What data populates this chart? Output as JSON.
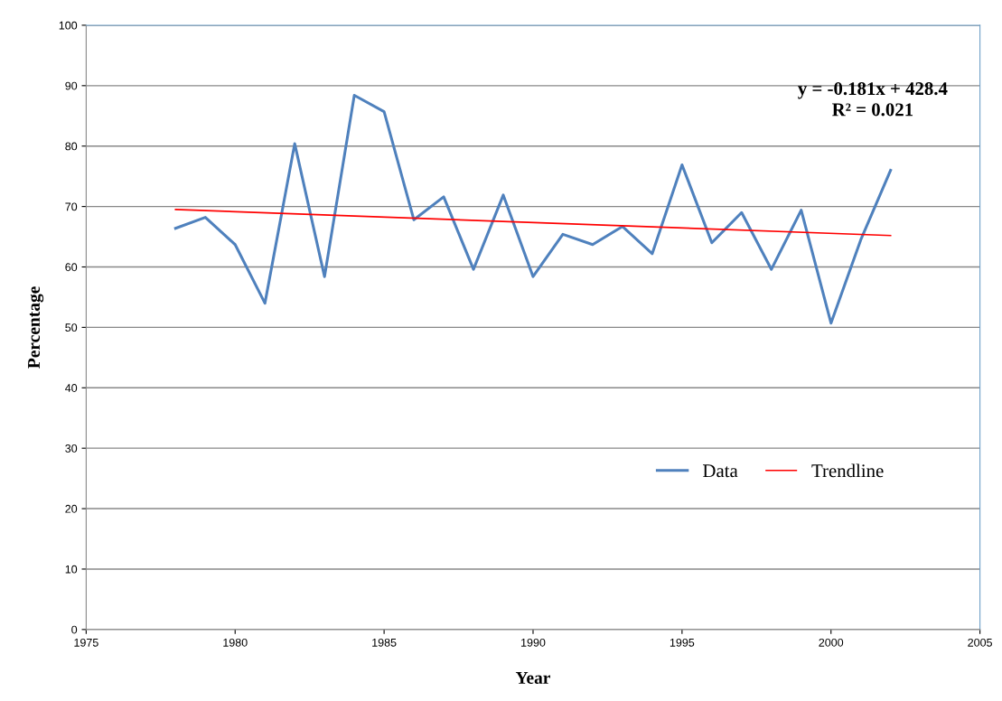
{
  "chart_data": {
    "type": "line",
    "xlabel": "Year",
    "ylabel": "Percentage",
    "xlim": [
      1975,
      2005
    ],
    "xticks": [
      1975,
      1980,
      1985,
      1990,
      1995,
      2000,
      2005
    ],
    "ylim": [
      0,
      100
    ],
    "yticks": [
      0,
      10,
      20,
      30,
      40,
      50,
      60,
      70,
      80,
      90,
      100
    ],
    "grid": "y",
    "legend": "right",
    "marker": "none",
    "line_style": "solid",
    "annotations": [
      "y = -0.181x + 428.4\nR² = 0.021"
    ],
    "series": [
      {
        "name": "Data",
        "color": "#4f81bd",
        "x": [
          1978,
          1979,
          1980,
          1981,
          1982,
          1983,
          1984,
          1985,
          1986,
          1987,
          1988,
          1989,
          1990,
          1991,
          1992,
          1993,
          1994,
          1995,
          1996,
          1997,
          1998,
          1999,
          2000,
          2001,
          2002
        ],
        "values": [
          66.4,
          68.2,
          63.7,
          54.0,
          80.4,
          58.4,
          88.4,
          85.7,
          67.8,
          71.6,
          59.6,
          71.9,
          58.4,
          65.4,
          63.7,
          66.7,
          62.2,
          76.9,
          64.0,
          69.0,
          59.6,
          69.4,
          50.7,
          64.5,
          76.0
        ]
      },
      {
        "name": "Trendline",
        "color": "#ff0000",
        "x": [
          1978,
          2002
        ],
        "values": [
          69.5,
          65.2
        ]
      }
    ]
  }
}
